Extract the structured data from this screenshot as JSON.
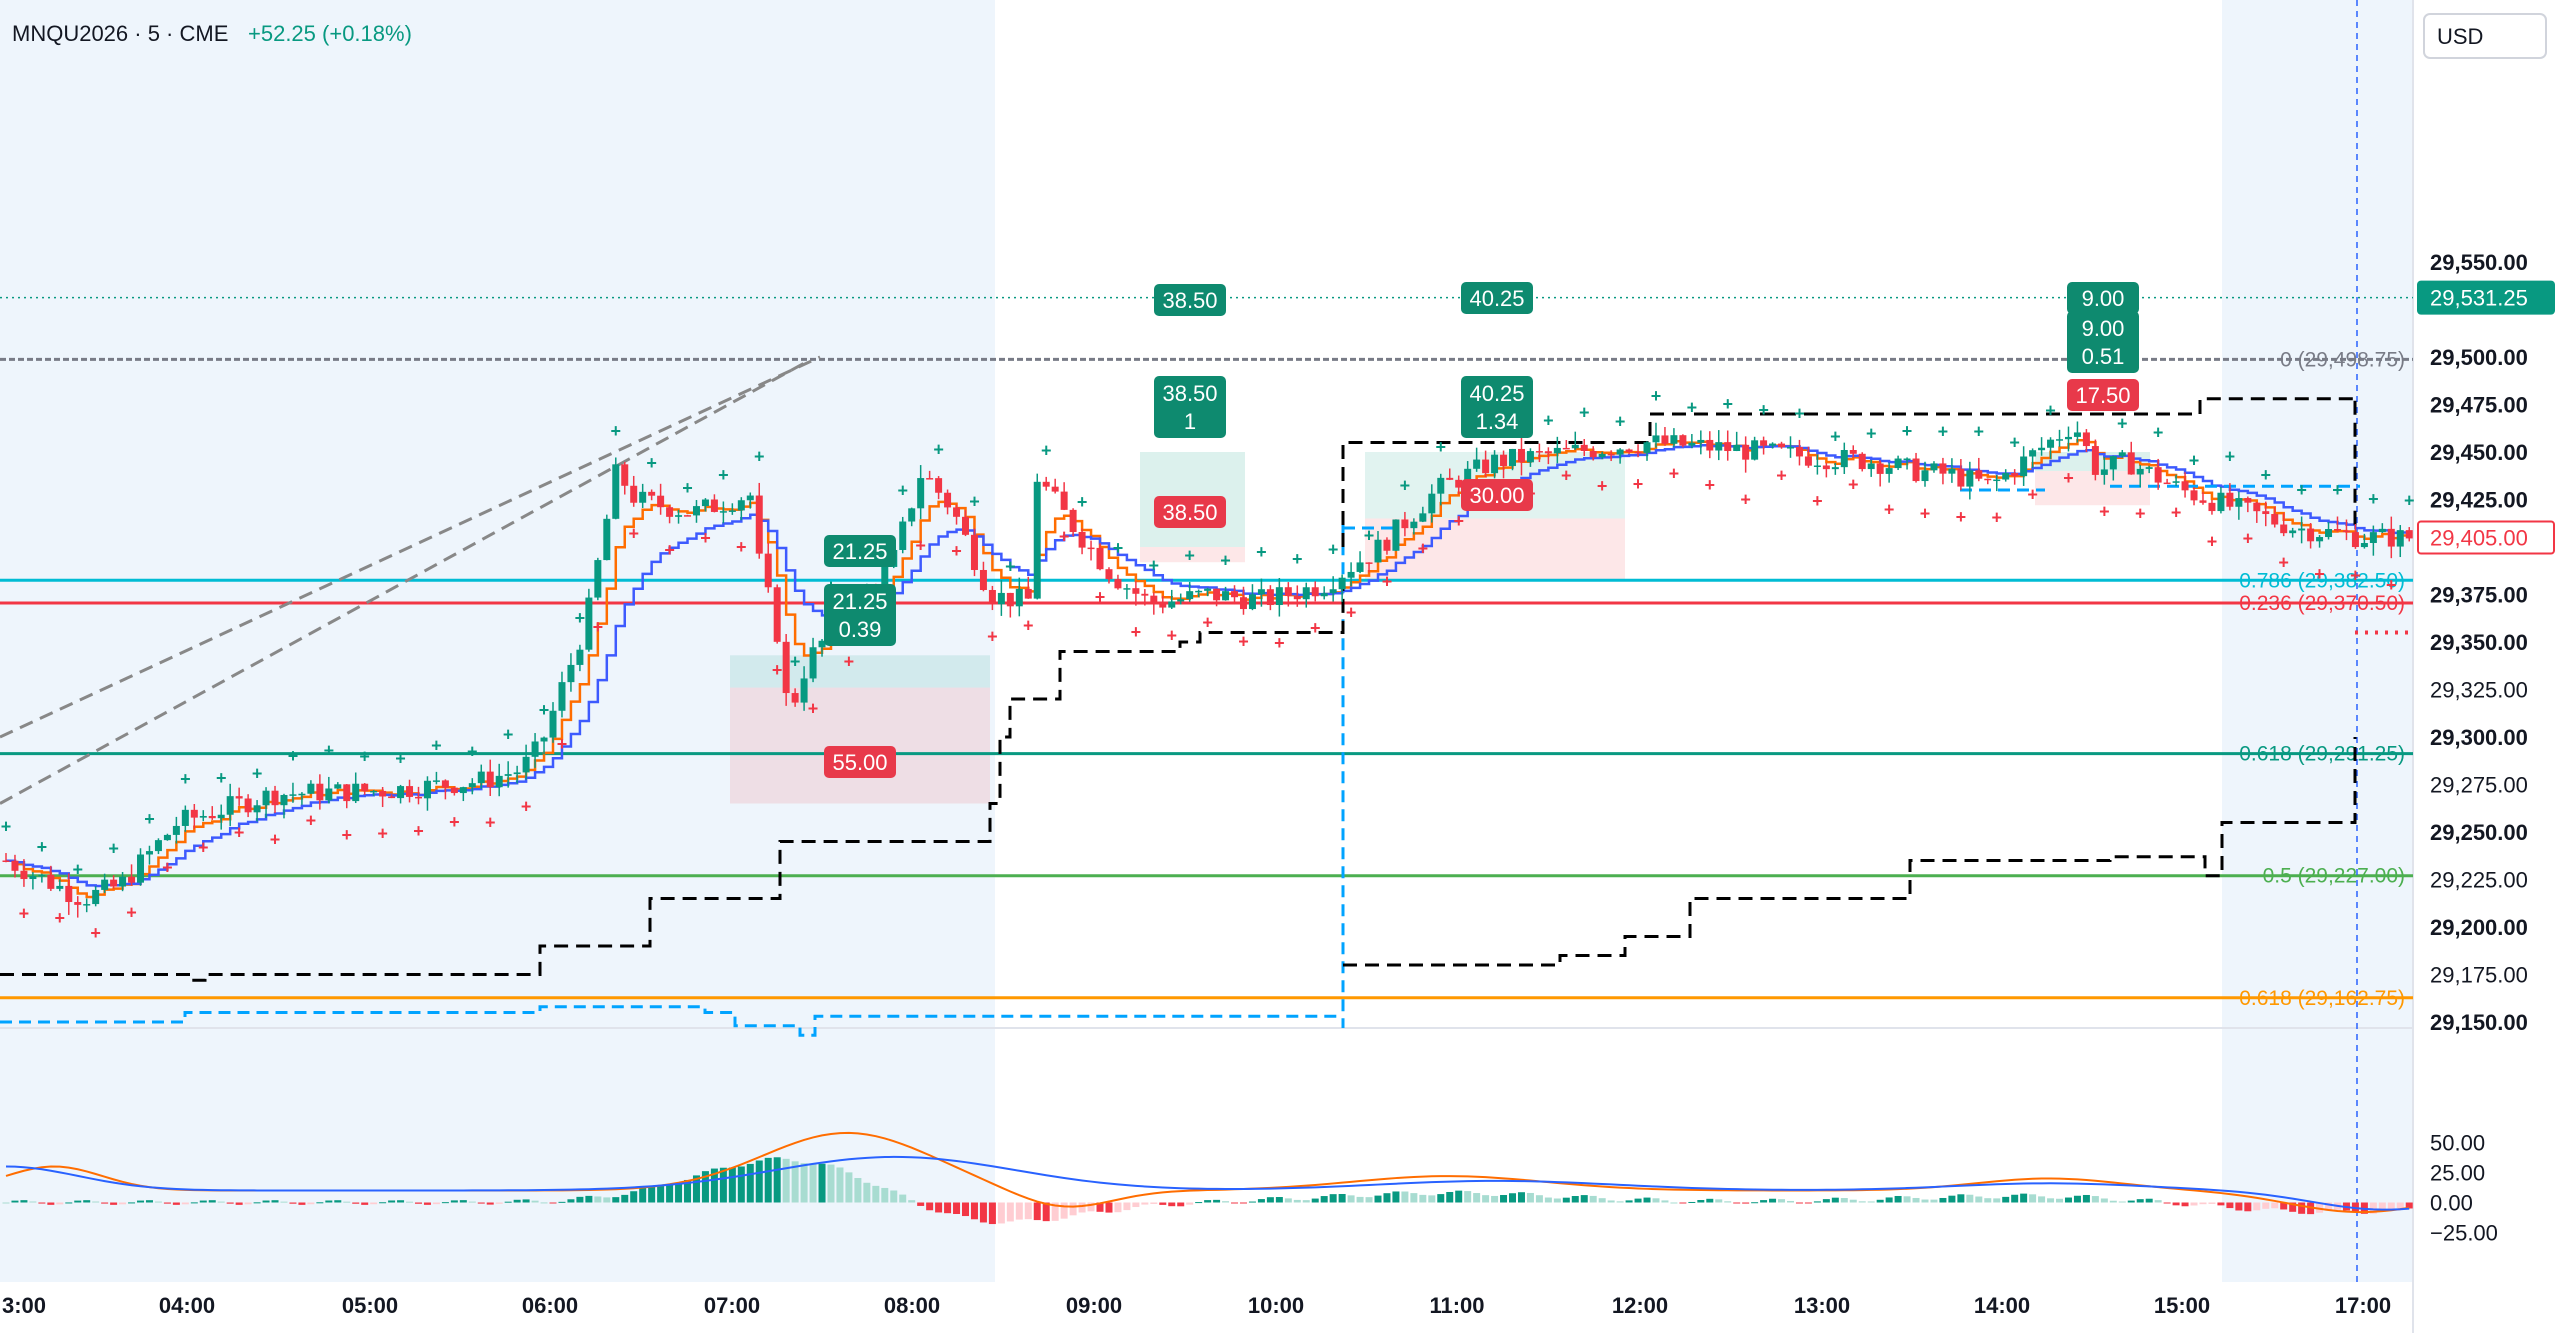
{
  "header": {
    "symbol": "MNQU2026",
    "interval": "5",
    "exchange": "CME",
    "change": "+52.25 (+0.18%)"
  },
  "currency_button": "USD",
  "price_axis": {
    "ticks": [
      {
        "value": 29550,
        "label": "29,550.00",
        "bold": true
      },
      {
        "value": 29500,
        "label": "29,500.00",
        "bold": true
      },
      {
        "value": 29475,
        "label": "29,475.00",
        "bold": true
      },
      {
        "value": 29450,
        "label": "29,450.00",
        "bold": true
      },
      {
        "value": 29425,
        "label": "29,425.00",
        "bold": true
      },
      {
        "value": 29375,
        "label": "29,375.00",
        "bold": true
      },
      {
        "value": 29350,
        "label": "29,350.00",
        "bold": true
      },
      {
        "value": 29325,
        "label": "29,325.00",
        "bold": false
      },
      {
        "value": 29300,
        "label": "29,300.00",
        "bold": true
      },
      {
        "value": 29275,
        "label": "29,275.00",
        "bold": false
      },
      {
        "value": 29250,
        "label": "29,250.00",
        "bold": true
      },
      {
        "value": 29225,
        "label": "29,225.00",
        "bold": false
      },
      {
        "value": 29200,
        "label": "29,200.00",
        "bold": true
      },
      {
        "value": 29175,
        "label": "29,175.00",
        "bold": false
      },
      {
        "value": 29150,
        "label": "29,150.00",
        "bold": true
      }
    ],
    "last_price": {
      "value": 29531.25,
      "label": "29,531.25",
      "color": "#089981"
    },
    "current_price": {
      "value": 29405,
      "label": "29,405.00",
      "color": "#f23645"
    }
  },
  "osc_axis": {
    "ticks": [
      {
        "value": 50,
        "label": "50.00"
      },
      {
        "value": 25,
        "label": "25.00"
      },
      {
        "value": 0,
        "label": "0.00"
      },
      {
        "value": -25,
        "label": "−25.00"
      }
    ]
  },
  "time_axis": [
    "3:00",
    "04:00",
    "05:00",
    "06:00",
    "07:00",
    "08:00",
    "09:00",
    "10:00",
    "11:00",
    "12:00",
    "13:00",
    "14:00",
    "15:00",
    "17:00"
  ],
  "fib_levels": [
    {
      "value": 29498.75,
      "label": "0 (29,498.75)",
      "color": "#787b86"
    },
    {
      "value": 29382.5,
      "label": "0.786 (29,382.50)",
      "color": "#00bcd4"
    },
    {
      "value": 29370.5,
      "label": "0.236 (29,370.50)",
      "color": "#f23645"
    },
    {
      "value": 29291.25,
      "label": "0.618 (29,291.25)",
      "color": "#089981"
    },
    {
      "value": 29227,
      "label": "0.5 (29,227.00)",
      "color": "#4caf50"
    },
    {
      "value": 29162.75,
      "label": "0.618 (29,162.75)",
      "color": "#ff9800"
    }
  ],
  "trade_labels": [
    {
      "text": "21.25",
      "kind": "profit"
    },
    {
      "text": "21.25",
      "sub": "0.39",
      "kind": "profit"
    },
    {
      "text": "55.00",
      "kind": "loss"
    },
    {
      "text": "38.50",
      "kind": "profit"
    },
    {
      "text": "38.50",
      "sub": "1",
      "kind": "profit"
    },
    {
      "text": "38.50",
      "kind": "loss"
    },
    {
      "text": "40.25",
      "kind": "profit"
    },
    {
      "text": "40.25",
      "sub": "1.34",
      "kind": "profit"
    },
    {
      "text": "30.00",
      "kind": "loss"
    },
    {
      "text": "9.00",
      "kind": "profit"
    },
    {
      "text": "9.00",
      "sub": "0.51",
      "kind": "profit"
    },
    {
      "text": "17.50",
      "kind": "loss"
    }
  ],
  "colors": {
    "up": "#089981",
    "down": "#f23645",
    "ema_fast": "#ff6d00",
    "ema_slow": "#3d5afe",
    "session_bg": "#eef5fc",
    "profit_label": "#0e8a6f",
    "loss_label": "#e8394a",
    "stop_line": "#000000",
    "blue_dash": "#00a3ff"
  },
  "chart_data": {
    "type": "candlestick",
    "price_range": [
      29130,
      29585
    ],
    "oscillator_range": [
      -32,
      62
    ],
    "last_close": 29405,
    "ema_fast_at_close": 29410,
    "ema_slow_at_close": 29420,
    "macd_peak": 50,
    "macd_trough": -25,
    "sessions_shaded": [
      "3:00-08:30",
      "15:15-17:20"
    ]
  }
}
